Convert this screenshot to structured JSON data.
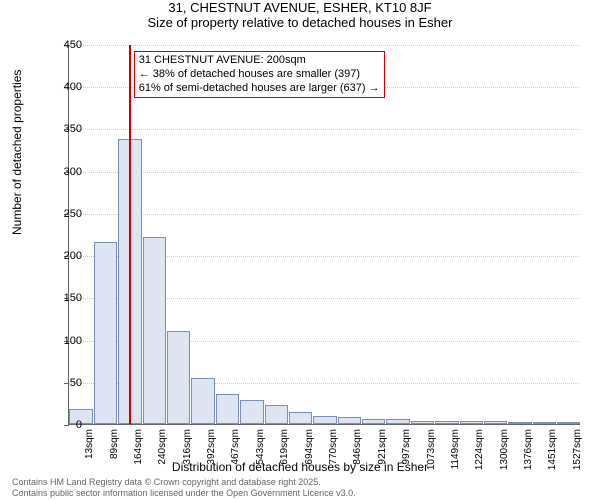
{
  "title": "31, CHESTNUT AVENUE, ESHER, KT10 8JF",
  "subtitle": "Size of property relative to detached houses in Esher",
  "ylabel": "Number of detached properties",
  "xlabel": "Distribution of detached houses by size in Esher",
  "chart": {
    "type": "histogram",
    "ylim": [
      0,
      450
    ],
    "ytick_step": 50,
    "bar_fill": "#dde4f2",
    "bar_stroke": "#7a8fb8",
    "grid_color": "#cccccc",
    "axis_color": "#666666",
    "bg": "#ffffff",
    "marker_color": "#cc0000",
    "marker_x_index": 2.45,
    "xticks": [
      "13sqm",
      "89sqm",
      "164sqm",
      "240sqm",
      "316sqm",
      "392sqm",
      "467sqm",
      "543sqm",
      "619sqm",
      "694sqm",
      "770sqm",
      "846sqm",
      "921sqm",
      "997sqm",
      "1073sqm",
      "1149sqm",
      "1224sqm",
      "1300sqm",
      "1376sqm",
      "1451sqm",
      "1527sqm"
    ],
    "values": [
      18,
      215,
      338,
      222,
      110,
      55,
      35,
      28,
      22,
      14,
      10,
      8,
      6,
      6,
      4,
      4,
      3,
      3,
      2,
      2,
      2
    ],
    "title_fontsize": 13,
    "label_fontsize": 12,
    "tick_fontsize": 11,
    "xtick_fontsize": 10
  },
  "callout": {
    "line1": "31 CHESTNUT AVENUE: 200sqm",
    "line2": "← 38% of detached houses are smaller (397)",
    "line3": "61% of semi-detached houses are larger (637) →"
  },
  "footer": {
    "line1": "Contains HM Land Registry data © Crown copyright and database right 2025.",
    "line2": "Contains public sector information licensed under the Open Government Licence v3.0."
  }
}
